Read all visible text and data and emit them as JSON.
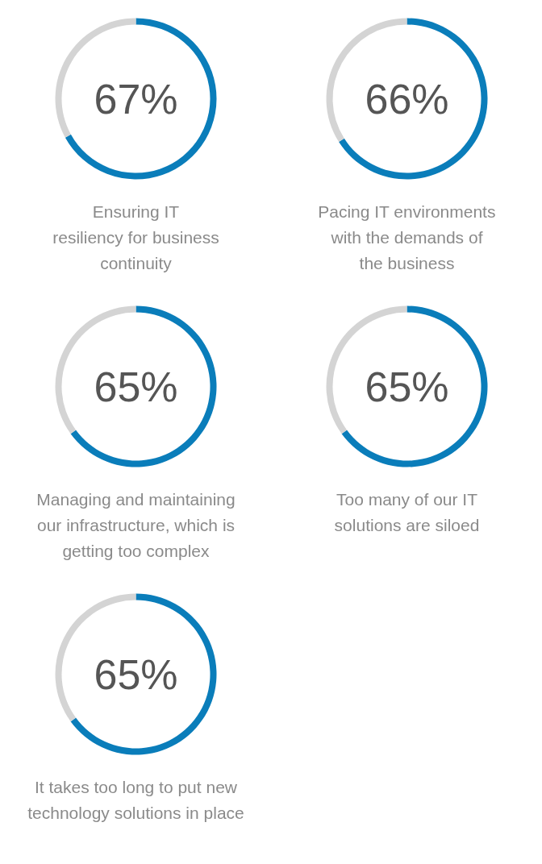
{
  "chart_data": [
    {
      "type": "donut",
      "title": "Ensuring IT\nresiliency for business\ncontinuity",
      "categories": [
        null,
        null
      ],
      "values": [
        67,
        33
      ],
      "colors": [
        "#0a7dba",
        "#d4d4d4"
      ],
      "annotations": [
        "67%"
      ]
    },
    {
      "type": "donut",
      "title": "Pacing IT environments\nwith the demands of\nthe business",
      "categories": [
        null,
        null
      ],
      "values": [
        66,
        34
      ],
      "colors": [
        "#0a7dba",
        "#d4d4d4"
      ],
      "annotations": [
        "66%"
      ]
    },
    {
      "type": "donut",
      "title": "Managing and maintaining\nour infrastructure, which is\ngetting too complex",
      "categories": [
        null,
        null
      ],
      "values": [
        65,
        35
      ],
      "colors": [
        "#0a7dba",
        "#d4d4d4"
      ],
      "annotations": [
        "65%"
      ]
    },
    {
      "type": "donut",
      "title": "Too many of our IT\nsolutions are siloed",
      "categories": [
        null,
        null
      ],
      "values": [
        65,
        35
      ],
      "colors": [
        "#0a7dba",
        "#d4d4d4"
      ],
      "annotations": [
        "65%"
      ]
    },
    {
      "type": "donut",
      "title": "It takes too long to put new\ntechnology solutions in place",
      "categories": [
        null,
        null
      ],
      "values": [
        65,
        35
      ],
      "colors": [
        "#0a7dba",
        "#d4d4d4"
      ],
      "annotations": [
        "65%"
      ]
    }
  ]
}
